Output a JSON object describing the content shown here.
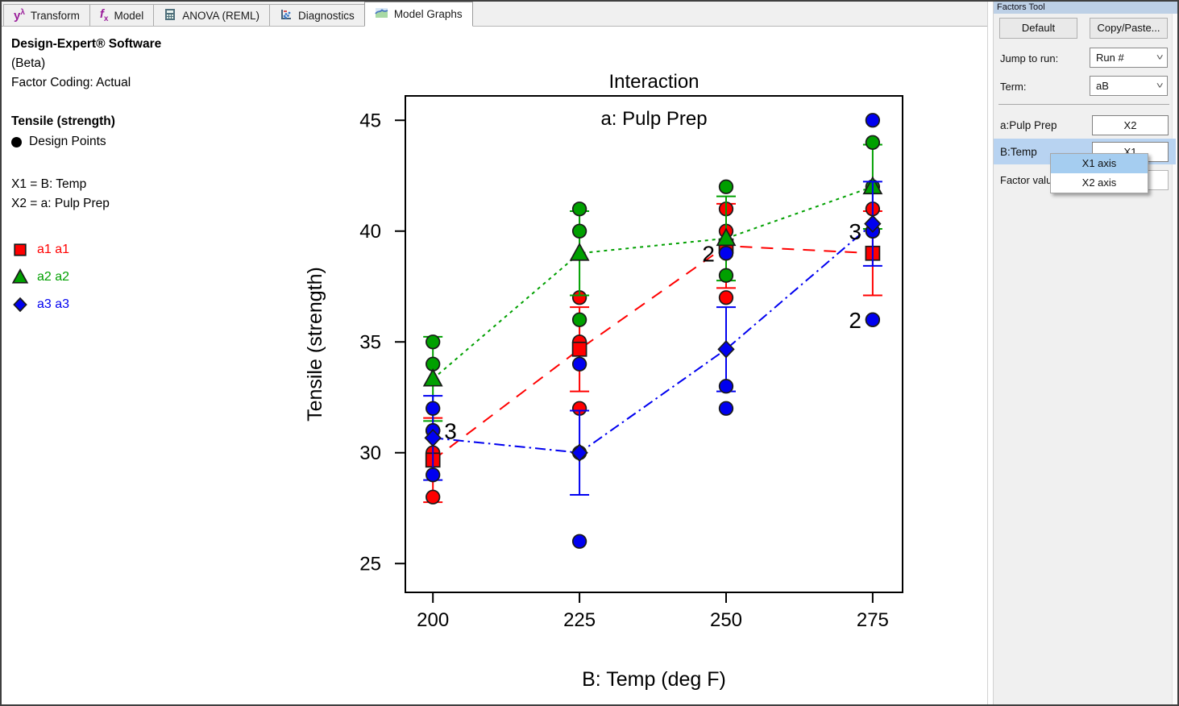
{
  "tabs": {
    "items": [
      {
        "label": "Transform"
      },
      {
        "label": "Model"
      },
      {
        "label": "ANOVA (REML)"
      },
      {
        "label": "Diagnostics"
      },
      {
        "label": "Model Graphs"
      }
    ],
    "active": "Model Graphs"
  },
  "info_panel": {
    "app_title": "Design-Expert® Software",
    "beta": "(Beta)",
    "factor_coding": "Factor Coding: Actual",
    "response": "Tensile (strength)",
    "design_points_label": "Design Points",
    "x1_assign": "X1 = B: Temp",
    "x2_assign": "X2 = a: Pulp Prep",
    "legend": [
      {
        "label": "a1 a1",
        "color": "#ff0000",
        "marker": "square"
      },
      {
        "label": "a2 a2",
        "color": "#00a000",
        "marker": "triangle"
      },
      {
        "label": "a3 a3",
        "color": "#0000f0",
        "marker": "diamond"
      }
    ]
  },
  "chart_data": {
    "type": "line",
    "title": "Interaction",
    "inner_title": "a: Pulp Prep",
    "xlabel": "B: Temp (deg F)",
    "ylabel": "Tensile (strength)",
    "x_ticks": [
      200,
      225,
      250,
      275
    ],
    "y_ticks": [
      25,
      30,
      35,
      40,
      45
    ],
    "xlim": [
      195.3,
      280.1
    ],
    "ylim": [
      23.7,
      46.1
    ],
    "error_bar_halfwidth": 1.9,
    "categories": [
      200,
      225,
      250,
      275
    ],
    "series": [
      {
        "name": "a1",
        "color": "#ff0000",
        "marker": "square",
        "dash": "dashed",
        "means": [
          29.67,
          34.67,
          39.33,
          39.0
        ],
        "replicates": [
          [
            30,
            28,
            31
          ],
          [
            35,
            32,
            37
          ],
          [
            37,
            40,
            41
          ],
          [
            36,
            41,
            40
          ]
        ]
      },
      {
        "name": "a2",
        "color": "#00a000",
        "marker": "triangle",
        "dash": "dotted",
        "means": [
          33.33,
          39.0,
          39.67,
          42.0
        ],
        "replicates": [
          [
            34,
            31,
            35
          ],
          [
            41,
            36,
            40
          ],
          [
            38,
            42,
            39
          ],
          [
            42,
            40,
            44
          ]
        ]
      },
      {
        "name": "a3",
        "color": "#0000f0",
        "marker": "diamond",
        "dash": "dashdot",
        "means": [
          30.67,
          30.0,
          34.67,
          40.33
        ],
        "replicates": [
          [
            29,
            31,
            32
          ],
          [
            26,
            30,
            34
          ],
          [
            33,
            32,
            39
          ],
          [
            36,
            40,
            45
          ]
        ]
      }
    ],
    "overlap_labels": [
      {
        "x": 200,
        "y": 31,
        "text": "3",
        "side": "right"
      },
      {
        "x": 250,
        "y": 39,
        "text": "2",
        "side": "left"
      },
      {
        "x": 275,
        "y": 40,
        "text": "3",
        "side": "left"
      },
      {
        "x": 275,
        "y": 36,
        "text": "2",
        "side": "left"
      }
    ]
  },
  "factors_tool": {
    "title": "Factors Tool",
    "default_button": "Default",
    "copy_paste_button": "Copy/Paste...",
    "jump_to_run_label": "Jump to run:",
    "jump_to_run_value": "Run #",
    "term_label": "Term:",
    "term_value": "aB",
    "rows": [
      {
        "label": "a:Pulp Prep",
        "value": "X2"
      },
      {
        "label": "B:Temp",
        "value": "X1"
      }
    ],
    "factor_value_label": "Factor valu",
    "context_menu": {
      "items": [
        {
          "label": "X1 axis"
        },
        {
          "label": "X2 axis"
        }
      ]
    },
    "highlight_color": "#b8d3f1",
    "menu_highlight_color": "#a5cdf0"
  }
}
